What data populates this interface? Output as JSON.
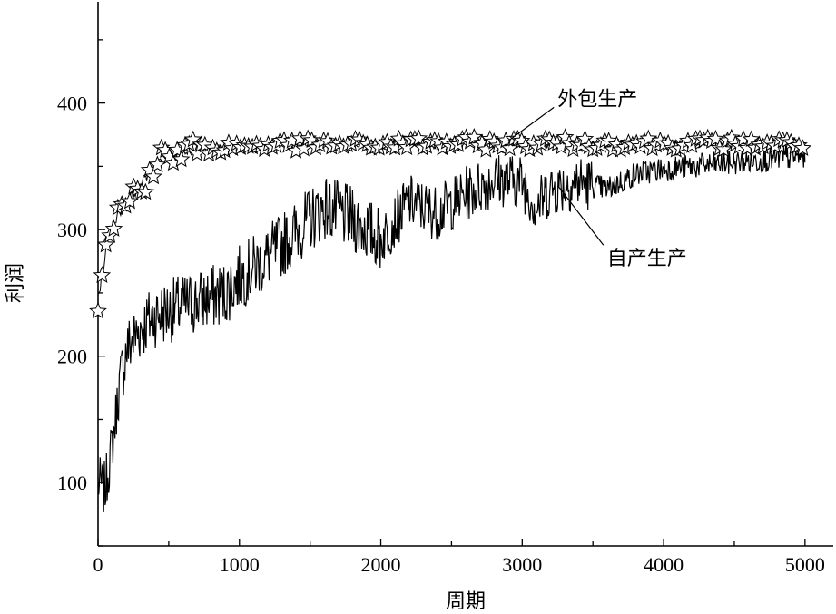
{
  "chart_data": {
    "type": "line",
    "xlabel": "周期",
    "ylabel": "利润",
    "xlim": [
      0,
      5200
    ],
    "ylim": [
      50,
      480
    ],
    "x_ticks": [
      0,
      1000,
      2000,
      3000,
      4000,
      5000
    ],
    "x_tick_labels": [
      "0",
      "1000",
      "2000",
      "3000",
      "4000",
      "5000"
    ],
    "y_ticks": [
      100,
      200,
      300,
      400
    ],
    "y_tick_labels": [
      "100",
      "200",
      "300",
      "400"
    ],
    "grid": false,
    "annotations": [
      {
        "text": "外包生产",
        "series": "外包生产",
        "point": [
          2900,
          370
        ],
        "text_pos": [
          3250,
          398
        ]
      },
      {
        "text": "自产生产",
        "series": "自产生产",
        "point": [
          3250,
          335
        ],
        "text_pos": [
          3600,
          272
        ]
      }
    ],
    "series": [
      {
        "name": "外包生产",
        "marker": "star",
        "color": "#000000",
        "x": [
          0,
          30,
          60,
          90,
          120,
          150,
          180,
          210,
          250,
          300,
          350,
          400,
          450,
          500,
          600,
          700,
          800,
          900,
          1000,
          1200,
          1400,
          1600,
          1800,
          2000,
          2200,
          2400,
          2600,
          2800,
          3000,
          3200,
          3400,
          3600,
          3800,
          4000,
          4200,
          4400,
          4600,
          4800,
          5000
        ],
        "y": [
          245,
          265,
          285,
          300,
          308,
          313,
          318,
          322,
          328,
          335,
          343,
          350,
          355,
          358,
          361,
          363,
          364,
          365,
          366,
          367,
          367,
          367,
          367,
          367,
          368,
          368,
          368,
          368,
          368,
          368,
          368,
          368,
          368,
          368,
          368,
          368,
          368,
          368,
          368
        ]
      },
      {
        "name": "自产生产",
        "color": "#000000",
        "x": [
          0,
          50,
          100,
          150,
          200,
          300,
          400,
          500,
          700,
          900,
          1000,
          1200,
          1400,
          1600,
          1800,
          2000,
          2200,
          2400,
          2600,
          2800,
          3000,
          3100,
          3200,
          3400,
          3600,
          3800,
          4000,
          4200,
          4400,
          4600,
          4800,
          5000
        ],
        "y": [
          100,
          95,
          130,
          175,
          205,
          222,
          232,
          236,
          243,
          250,
          262,
          278,
          298,
          318,
          308,
          292,
          322,
          313,
          328,
          340,
          338,
          318,
          332,
          338,
          332,
          344,
          348,
          350,
          352,
          354,
          356,
          358
        ]
      }
    ]
  }
}
